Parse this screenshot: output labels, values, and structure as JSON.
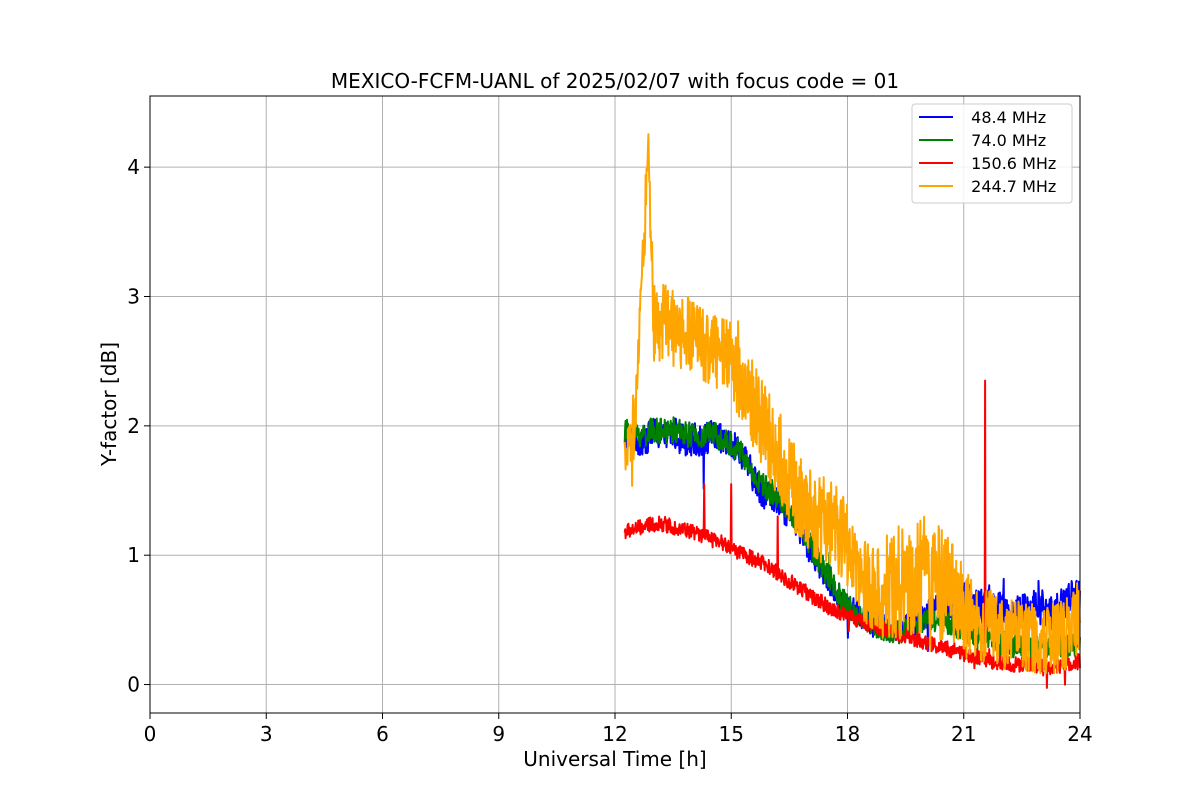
{
  "chart_data": {
    "type": "line",
    "title": "MEXICO-FCFM-UANL of 2025/02/07 with focus code = 01",
    "xlabel": "Universal Time [h]",
    "ylabel": "Y-factor [dB]",
    "xlim": [
      0,
      24
    ],
    "ylim": [
      -0.22,
      4.55
    ],
    "xticks": [
      0,
      3,
      6,
      9,
      12,
      15,
      18,
      21,
      24
    ],
    "yticks": [
      0,
      1,
      2,
      3,
      4
    ],
    "xtick_labels": [
      "0",
      "3",
      "6",
      "9",
      "12",
      "15",
      "18",
      "21",
      "24"
    ],
    "ytick_labels": [
      "0",
      "1",
      "2",
      "3",
      "4"
    ],
    "grid": true,
    "legend_position": "top-right",
    "series": [
      {
        "name": "48.4 MHz",
        "legend_label": "  48.4 MHz",
        "color": "#0000ff",
        "x": [
          12.25,
          12.5,
          12.75,
          13.0,
          13.25,
          13.5,
          13.75,
          14.0,
          14.25,
          14.5,
          14.75,
          15.0,
          15.25,
          15.5,
          15.75,
          16.0,
          16.25,
          16.5,
          16.75,
          17.0,
          17.25,
          17.5,
          17.75,
          18.0,
          18.25,
          18.5,
          18.75,
          19.0,
          19.25,
          19.5,
          19.75,
          20.0,
          20.25,
          20.5,
          20.75,
          21.0,
          21.25,
          21.5,
          21.75,
          22.0,
          22.25,
          22.5,
          22.75,
          23.0,
          23.25,
          23.5,
          23.75,
          24.0
        ],
        "y": [
          1.9,
          1.9,
          1.88,
          1.95,
          1.9,
          1.95,
          1.9,
          1.9,
          1.88,
          1.92,
          1.88,
          1.85,
          1.8,
          1.65,
          1.5,
          1.45,
          1.4,
          1.3,
          1.2,
          1.05,
          0.95,
          0.8,
          0.7,
          0.6,
          0.55,
          0.5,
          0.45,
          0.45,
          0.4,
          0.45,
          0.5,
          0.55,
          0.6,
          0.65,
          0.6,
          0.65,
          0.62,
          0.6,
          0.58,
          0.6,
          0.55,
          0.58,
          0.6,
          0.6,
          0.55,
          0.6,
          0.65,
          0.7
        ],
        "spread": [
          0.12,
          0.12,
          0.12,
          0.12,
          0.12,
          0.13,
          0.13,
          0.13,
          0.13,
          0.13,
          0.13,
          0.12,
          0.12,
          0.12,
          0.12,
          0.12,
          0.11,
          0.11,
          0.11,
          0.11,
          0.11,
          0.11,
          0.1,
          0.1,
          0.1,
          0.1,
          0.1,
          0.1,
          0.1,
          0.1,
          0.12,
          0.12,
          0.12,
          0.13,
          0.13,
          0.14,
          0.14,
          0.14,
          0.14,
          0.14,
          0.14,
          0.14,
          0.14,
          0.14,
          0.14,
          0.14,
          0.15,
          0.15
        ]
      },
      {
        "name": "74.0 MHz",
        "legend_label": "  74.0 MHz",
        "color": "#008000",
        "x": [
          12.25,
          12.5,
          12.75,
          13.0,
          13.25,
          13.5,
          13.75,
          14.0,
          14.25,
          14.5,
          14.75,
          15.0,
          15.25,
          15.5,
          15.75,
          16.0,
          16.25,
          16.5,
          16.75,
          17.0,
          17.25,
          17.5,
          17.75,
          18.0,
          18.25,
          18.5,
          18.75,
          19.0,
          19.25,
          19.5,
          19.75,
          20.0,
          20.25,
          20.5,
          20.75,
          21.0,
          21.25,
          21.5,
          21.75,
          22.0,
          22.25,
          22.5,
          22.75,
          23.0,
          23.25,
          23.5,
          23.75,
          24.0
        ],
        "y": [
          1.95,
          1.95,
          1.93,
          1.97,
          1.95,
          1.97,
          1.95,
          1.92,
          1.9,
          1.95,
          1.9,
          1.85,
          1.8,
          1.65,
          1.55,
          1.5,
          1.45,
          1.35,
          1.25,
          1.1,
          0.95,
          0.85,
          0.7,
          0.6,
          0.55,
          0.5,
          0.45,
          0.42,
          0.4,
          0.42,
          0.45,
          0.5,
          0.5,
          0.48,
          0.45,
          0.42,
          0.4,
          0.38,
          0.35,
          0.33,
          0.3,
          0.3,
          0.28,
          0.3,
          0.3,
          0.3,
          0.3,
          0.32
        ],
        "spread": [
          0.1,
          0.1,
          0.1,
          0.1,
          0.1,
          0.1,
          0.1,
          0.1,
          0.1,
          0.1,
          0.1,
          0.1,
          0.1,
          0.1,
          0.1,
          0.1,
          0.1,
          0.1,
          0.1,
          0.1,
          0.1,
          0.1,
          0.1,
          0.1,
          0.09,
          0.09,
          0.09,
          0.09,
          0.09,
          0.09,
          0.09,
          0.09,
          0.09,
          0.09,
          0.09,
          0.09,
          0.09,
          0.09,
          0.09,
          0.09,
          0.09,
          0.09,
          0.09,
          0.09,
          0.09,
          0.09,
          0.09,
          0.09
        ]
      },
      {
        "name": "150.6 MHz",
        "legend_label": "  150.6 MHz",
        "color": "#ff0000",
        "x": [
          12.25,
          12.5,
          12.75,
          13.0,
          13.25,
          13.5,
          13.75,
          14.0,
          14.25,
          14.5,
          14.75,
          15.0,
          15.25,
          15.5,
          15.75,
          16.0,
          16.25,
          16.5,
          16.75,
          17.0,
          17.25,
          17.5,
          17.75,
          18.0,
          18.25,
          18.5,
          18.75,
          19.0,
          19.25,
          19.5,
          19.75,
          20.0,
          20.25,
          20.5,
          20.75,
          21.0,
          21.25,
          21.5,
          21.75,
          22.0,
          22.25,
          22.5,
          22.75,
          23.0,
          23.25,
          23.5,
          23.75,
          24.0
        ],
        "y": [
          1.18,
          1.2,
          1.22,
          1.24,
          1.24,
          1.22,
          1.2,
          1.18,
          1.15,
          1.12,
          1.1,
          1.05,
          1.02,
          0.98,
          0.95,
          0.9,
          0.85,
          0.8,
          0.75,
          0.7,
          0.65,
          0.6,
          0.57,
          0.53,
          0.5,
          0.47,
          0.44,
          0.42,
          0.4,
          0.37,
          0.35,
          0.33,
          0.3,
          0.28,
          0.26,
          0.24,
          0.22,
          0.2,
          0.18,
          0.17,
          0.16,
          0.15,
          0.15,
          0.14,
          0.14,
          0.15,
          0.16,
          0.18
        ],
        "spread": [
          0.06,
          0.06,
          0.06,
          0.06,
          0.06,
          0.06,
          0.06,
          0.06,
          0.06,
          0.06,
          0.06,
          0.06,
          0.06,
          0.06,
          0.06,
          0.06,
          0.06,
          0.06,
          0.06,
          0.06,
          0.06,
          0.06,
          0.06,
          0.06,
          0.06,
          0.06,
          0.06,
          0.06,
          0.06,
          0.06,
          0.06,
          0.06,
          0.06,
          0.06,
          0.06,
          0.06,
          0.06,
          0.06,
          0.06,
          0.06,
          0.06,
          0.06,
          0.06,
          0.06,
          0.06,
          0.06,
          0.06,
          0.06
        ],
        "spikes": [
          {
            "x": 14.3,
            "y": 1.55
          },
          {
            "x": 15.0,
            "y": 1.55
          },
          {
            "x": 16.2,
            "y": 1.3
          },
          {
            "x": 21.55,
            "y": 2.35
          }
        ]
      },
      {
        "name": "244.7 MHz",
        "legend_label": "  244.7 MHz",
        "color": "#ffa500",
        "x": [
          12.25,
          12.5,
          12.75,
          12.85,
          13.0,
          13.25,
          13.5,
          13.75,
          14.0,
          14.25,
          14.5,
          14.75,
          15.0,
          15.25,
          15.5,
          15.75,
          16.0,
          16.25,
          16.5,
          16.75,
          17.0,
          17.25,
          17.5,
          17.75,
          18.0,
          18.25,
          18.5,
          18.75,
          19.0,
          19.25,
          19.5,
          19.75,
          20.0,
          20.25,
          20.5,
          20.75,
          21.0,
          21.25,
          21.5,
          21.75,
          22.0,
          22.25,
          22.5,
          22.75,
          23.0,
          23.25,
          23.5,
          23.75,
          24.0
        ],
        "y": [
          1.75,
          1.9,
          3.4,
          4.25,
          2.8,
          2.8,
          2.75,
          2.7,
          2.7,
          2.65,
          2.6,
          2.55,
          2.5,
          2.35,
          2.2,
          2.05,
          1.9,
          1.75,
          1.6,
          1.45,
          1.35,
          1.3,
          1.25,
          1.2,
          1.05,
          0.85,
          0.75,
          0.7,
          0.75,
          0.8,
          0.8,
          0.85,
          0.85,
          0.8,
          0.75,
          0.7,
          0.55,
          0.5,
          0.45,
          0.45,
          0.4,
          0.4,
          0.38,
          0.35,
          0.35,
          0.35,
          0.38,
          0.4,
          0.55
        ],
        "spread": [
          0.18,
          0.18,
          0.25,
          0.2,
          0.3,
          0.3,
          0.3,
          0.3,
          0.3,
          0.3,
          0.3,
          0.3,
          0.3,
          0.32,
          0.34,
          0.35,
          0.35,
          0.35,
          0.35,
          0.35,
          0.35,
          0.35,
          0.35,
          0.35,
          0.35,
          0.35,
          0.35,
          0.35,
          0.4,
          0.45,
          0.45,
          0.45,
          0.45,
          0.45,
          0.45,
          0.4,
          0.35,
          0.3,
          0.28,
          0.28,
          0.28,
          0.28,
          0.28,
          0.28,
          0.28,
          0.28,
          0.28,
          0.28,
          0.28
        ]
      }
    ]
  }
}
